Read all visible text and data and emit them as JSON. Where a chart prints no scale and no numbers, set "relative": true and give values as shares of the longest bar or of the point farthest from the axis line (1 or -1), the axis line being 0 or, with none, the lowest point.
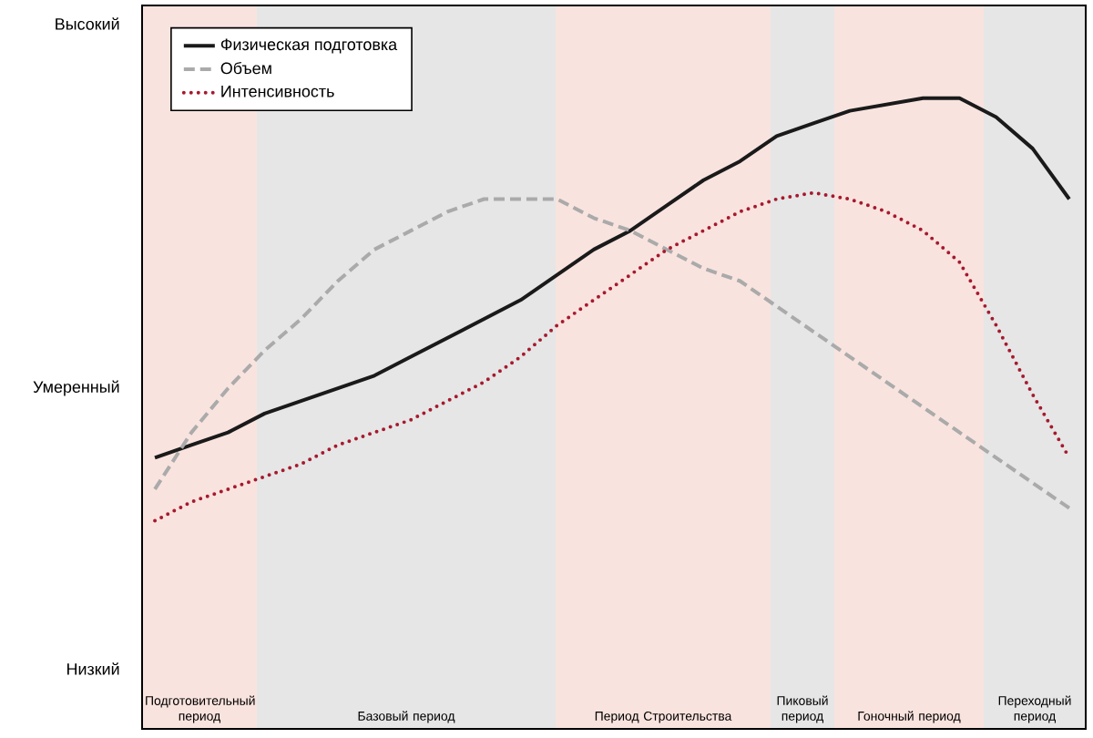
{
  "chart_data": {
    "type": "line",
    "relative": true,
    "categories": [
      null,
      null,
      null,
      null,
      null,
      null,
      null,
      null,
      null,
      null,
      null,
      null,
      null,
      null,
      null,
      null,
      null,
      null,
      null,
      null,
      null,
      null,
      null,
      null,
      null,
      null
    ],
    "legend": "top left",
    "marker": "none",
    "series": [
      {
        "name": "Физическая подготовка",
        "color": "#1a1a1a",
        "line_style": "solid",
        "values": [
          0.43,
          0.45,
          0.47,
          0.5,
          0.52,
          0.54,
          0.56,
          0.59,
          0.62,
          0.65,
          0.68,
          0.72,
          0.76,
          0.79,
          0.83,
          0.87,
          0.9,
          0.94,
          0.96,
          0.98,
          0.99,
          1.0,
          1.0,
          0.97,
          0.92,
          0.84
        ]
      },
      {
        "name": "Объем",
        "color": "#aaaaaa",
        "line_style": "dashed",
        "values": [
          0.38,
          0.47,
          0.54,
          0.6,
          0.65,
          0.71,
          0.76,
          0.79,
          0.82,
          0.84,
          0.84,
          0.84,
          0.81,
          0.79,
          0.76,
          0.73,
          0.71,
          0.67,
          0.63,
          0.59,
          0.55,
          0.51,
          0.47,
          0.43,
          0.39,
          0.35
        ]
      },
      {
        "name": "Интенсивность",
        "color": "#a6192e",
        "line_style": "dotted",
        "values": [
          0.33,
          0.36,
          0.38,
          0.4,
          0.42,
          0.45,
          0.47,
          0.49,
          0.52,
          0.55,
          0.59,
          0.64,
          0.68,
          0.72,
          0.76,
          0.79,
          0.82,
          0.84,
          0.85,
          0.84,
          0.82,
          0.79,
          0.74,
          0.64,
          0.53,
          0.43
        ]
      }
    ],
    "annotations": [
      "Высокий",
      "Умеренный",
      "Низкий",
      "Подготовительный период",
      "Базовый период",
      "Период Строительства",
      "Пиковый период",
      "Гоночный период",
      "Переходный период"
    ]
  }
}
